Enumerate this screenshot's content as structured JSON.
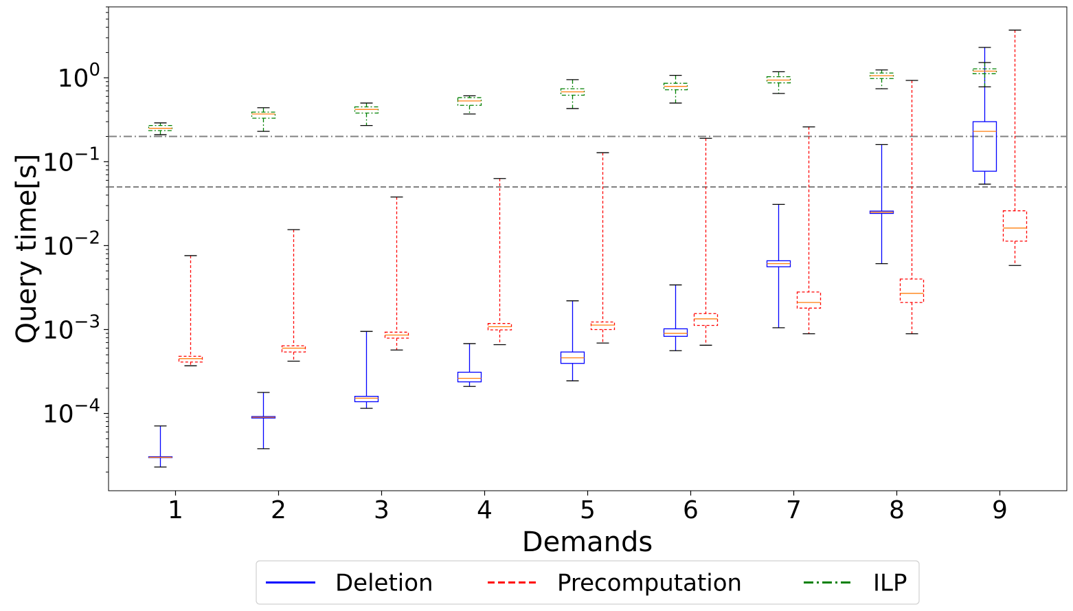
{
  "chart_data": {
    "type": "box",
    "xlabel": "Demands",
    "ylabel": "Query time[s]",
    "y_scale": "log",
    "ylim": [
      1.2e-05,
      7
    ],
    "categories": [
      "1",
      "2",
      "3",
      "4",
      "5",
      "6",
      "7",
      "8",
      "9"
    ],
    "y_ticks": [
      {
        "value": 0.0001,
        "base": "10",
        "exp": "−4"
      },
      {
        "value": 0.001,
        "base": "10",
        "exp": "−3"
      },
      {
        "value": 0.01,
        "base": "10",
        "exp": "−2"
      },
      {
        "value": 0.1,
        "base": "10",
        "exp": "−1"
      },
      {
        "value": 1,
        "base": "10",
        "exp": "0"
      }
    ],
    "reference_lines": [
      {
        "value": 0.2,
        "style": "dashdot",
        "color": "#808080"
      },
      {
        "value": 0.05,
        "style": "dashed",
        "color": "#808080"
      }
    ],
    "median_color": "#ff7f0e",
    "whisker_cap_color": "#000000",
    "legend": {
      "placement": "bottom-center",
      "columns": 3
    },
    "series": [
      {
        "name": "Deletion",
        "color": "#0000ff",
        "style": "solid",
        "boxes": [
          {
            "whislo": 2.3e-05,
            "q1": 2.98e-05,
            "med": 3e-05,
            "q3": 3.05e-05,
            "whishi": 7.1e-05
          },
          {
            "whislo": 3.8e-05,
            "q1": 8.82e-05,
            "med": 9e-05,
            "q3": 9.18e-05,
            "whishi": 0.000178
          },
          {
            "whislo": 0.000115,
            "q1": 0.000138,
            "med": 0.000152,
            "q3": 0.00016,
            "whishi": 0.00095
          },
          {
            "whislo": 0.00021,
            "q1": 0.000238,
            "med": 0.000262,
            "q3": 0.00031,
            "whishi": 0.00068
          },
          {
            "whislo": 0.000245,
            "q1": 0.000395,
            "med": 0.00046,
            "q3": 0.00054,
            "whishi": 0.0022
          },
          {
            "whislo": 0.00056,
            "q1": 0.00083,
            "med": 0.0009,
            "q3": 0.00102,
            "whishi": 0.0034
          },
          {
            "whislo": 0.00105,
            "q1": 0.0056,
            "med": 0.0061,
            "q3": 0.0066,
            "whishi": 0.031
          },
          {
            "whislo": 0.0061,
            "q1": 0.0242,
            "med": 0.025,
            "q3": 0.0258,
            "whishi": 0.16
          },
          {
            "whislo": 0.054,
            "q1": 0.077,
            "med": 0.23,
            "q3": 0.3,
            "whishi": 2.3
          }
        ]
      },
      {
        "name": "Precomputation",
        "color": "#ff0000",
        "style": "dashed",
        "boxes": [
          {
            "whislo": 0.00037,
            "q1": 0.00041,
            "med": 0.00045,
            "q3": 0.00048,
            "whishi": 0.0076
          },
          {
            "whislo": 0.00042,
            "q1": 0.00054,
            "med": 0.0006,
            "q3": 0.00064,
            "whishi": 0.0155
          },
          {
            "whislo": 0.00057,
            "q1": 0.00079,
            "med": 0.00086,
            "q3": 0.00093,
            "whishi": 0.038
          },
          {
            "whislo": 0.00066,
            "q1": 0.00099,
            "med": 0.00108,
            "q3": 0.00118,
            "whishi": 0.063
          },
          {
            "whislo": 0.00069,
            "q1": 0.001,
            "med": 0.00113,
            "q3": 0.00123,
            "whishi": 0.128
          },
          {
            "whislo": 0.00065,
            "q1": 0.00112,
            "med": 0.00134,
            "q3": 0.00155,
            "whishi": 0.19
          },
          {
            "whislo": 0.00089,
            "q1": 0.0018,
            "med": 0.0021,
            "q3": 0.0028,
            "whishi": 0.26
          },
          {
            "whislo": 0.00089,
            "q1": 0.0021,
            "med": 0.0027,
            "q3": 0.004,
            "whishi": 0.93
          },
          {
            "whislo": 0.0058,
            "q1": 0.0113,
            "med": 0.0162,
            "q3": 0.026,
            "whishi": 3.7
          }
        ]
      },
      {
        "name": "ILP",
        "color": "#008000",
        "style": "dashdot",
        "boxes": [
          {
            "whislo": 0.21,
            "q1": 0.235,
            "med": 0.25,
            "q3": 0.27,
            "whishi": 0.29
          },
          {
            "whislo": 0.23,
            "q1": 0.33,
            "med": 0.37,
            "q3": 0.39,
            "whishi": 0.44
          },
          {
            "whislo": 0.27,
            "q1": 0.38,
            "med": 0.42,
            "q3": 0.45,
            "whishi": 0.5
          },
          {
            "whislo": 0.37,
            "q1": 0.47,
            "med": 0.53,
            "q3": 0.58,
            "whishi": 0.61
          },
          {
            "whislo": 0.43,
            "q1": 0.62,
            "med": 0.68,
            "q3": 0.74,
            "whishi": 0.95
          },
          {
            "whislo": 0.5,
            "q1": 0.72,
            "med": 0.79,
            "q3": 0.86,
            "whishi": 1.07
          },
          {
            "whislo": 0.65,
            "q1": 0.87,
            "med": 0.94,
            "q3": 1.03,
            "whishi": 1.18
          },
          {
            "whislo": 0.74,
            "q1": 0.98,
            "med": 1.06,
            "q3": 1.14,
            "whishi": 1.24
          },
          {
            "whislo": 0.78,
            "q1": 1.12,
            "med": 1.2,
            "q3": 1.28,
            "whishi": 1.52
          }
        ]
      }
    ]
  }
}
